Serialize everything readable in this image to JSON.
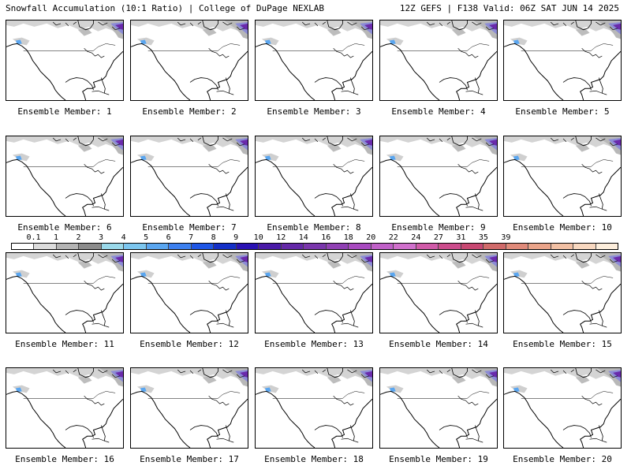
{
  "header": {
    "title_left": "Snowfall Accumulation (10:1 Ratio) | College of DuPage NEXLAB",
    "title_right": "12Z GEFS | F138 Valid: 06Z SAT JUN 14 2025"
  },
  "panels": [
    {
      "label": "Ensemble Member: 1"
    },
    {
      "label": "Ensemble Member: 2"
    },
    {
      "label": "Ensemble Member: 3"
    },
    {
      "label": "Ensemble Member: 4"
    },
    {
      "label": "Ensemble Member: 5"
    },
    {
      "label": "Ensemble Member: 6"
    },
    {
      "label": "Ensemble Member: 7"
    },
    {
      "label": "Ensemble Member: 8"
    },
    {
      "label": "Ensemble Member: 9"
    },
    {
      "label": "Ensemble Member: 10"
    },
    {
      "label": "Ensemble Member: 11"
    },
    {
      "label": "Ensemble Member: 12"
    },
    {
      "label": "Ensemble Member: 13"
    },
    {
      "label": "Ensemble Member: 14"
    },
    {
      "label": "Ensemble Member: 15"
    },
    {
      "label": "Ensemble Member: 16"
    },
    {
      "label": "Ensemble Member: 17"
    },
    {
      "label": "Ensemble Member: 18"
    },
    {
      "label": "Ensemble Member: 19"
    },
    {
      "label": "Ensemble Member: 20"
    }
  ],
  "legend": {
    "labels": [
      "0.1",
      "1",
      "2",
      "3",
      "4",
      "5",
      "6",
      "7",
      "8",
      "9",
      "10",
      "12",
      "14",
      "16",
      "18",
      "20",
      "22",
      "24",
      "27",
      "31",
      "35",
      "39"
    ],
    "colors": [
      "#ffffff",
      "#dcdcdc",
      "#b4b4b4",
      "#8c8c8c",
      "#9ad9ea",
      "#7cc6ef",
      "#5aa6f0",
      "#3c80f0",
      "#1e56e6",
      "#1430c8",
      "#2a12b4",
      "#4a1aa8",
      "#6428a8",
      "#7a36ac",
      "#9040b4",
      "#a84ac0",
      "#c060c8",
      "#d070cc",
      "#d05aa8",
      "#cc4c8c",
      "#c84872",
      "#d06a6a",
      "#e08a7a",
      "#eaa48a",
      "#f2c0a4",
      "#f8d8c0",
      "#fdeedc"
    ]
  }
}
